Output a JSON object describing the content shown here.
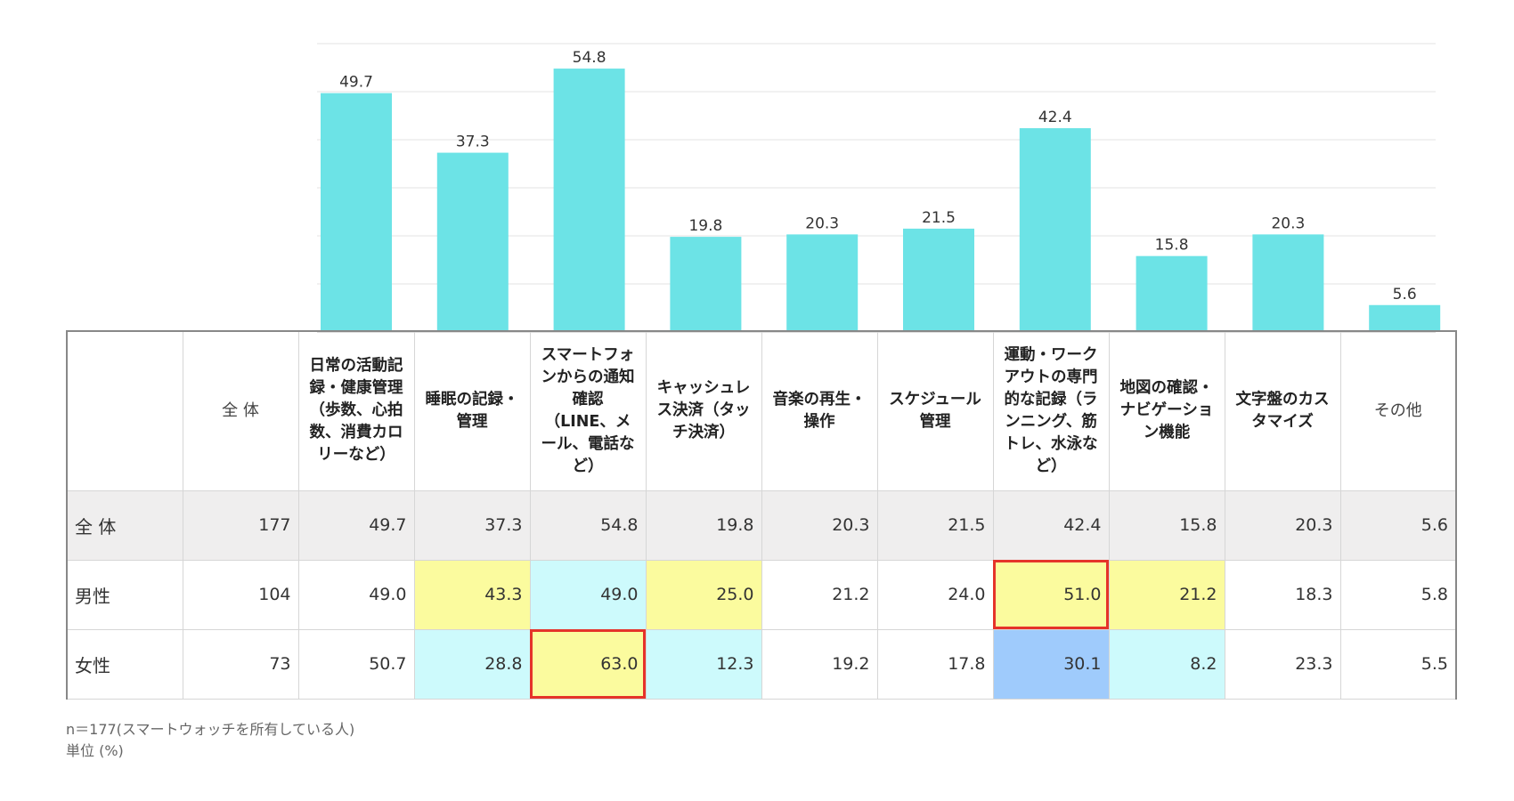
{
  "chart_data": {
    "type": "bar",
    "categories": [
      "日常の活動記録・健康管理（歩数、心拍数、消費カロリーなど）",
      "睡眠の記録・管理",
      "スマートフォンからの通知確認（LINE、メール、電話など）",
      "キャッシュレス決済（タッチ決済）",
      "音楽の再生・操作",
      "スケジュール管理",
      "運動・ワークアウトの専門的な記録（ランニング、筋トレ、水泳など）",
      "地図の確認・ナビゲーション機能",
      "文字盤のカスタマイズ",
      "その他"
    ],
    "values": [
      49.7,
      37.3,
      54.8,
      19.8,
      20.3,
      21.5,
      42.4,
      15.8,
      20.3,
      5.6
    ],
    "value_labels": [
      "49.7",
      "37.3",
      "54.8",
      "19.8",
      "20.3",
      "21.5",
      "42.4",
      "15.8",
      "20.3",
      "5.6"
    ],
    "ylim": [
      0,
      60
    ],
    "grid": true,
    "bar_color": "#6ce3e6"
  },
  "table": {
    "header_labels": [
      "全 体",
      "日常の活動記\n録・健康管理\n（歩数、心拍\n数、消費カロ\nリーなど）",
      "睡眠の記録・\n管理",
      "スマートフォ\nンからの通知\n確認\n（LINE、メ\nール、電話な\nど）",
      "キャッシュレ\nス決済（タッ\nチ決済）",
      "音楽の再生・\n操作",
      "スケジュール\n管理",
      "運動・ワーク\nアウトの専門\n的な記録（ラ\nンニング、筋\nトレ、水泳な\nど）",
      "地図の確認・\nナビゲーショ\nン機能",
      "文字盤のカス\nタマイズ",
      "その他"
    ],
    "rows": [
      {
        "label": "全 体",
        "n": "177",
        "values": [
          "49.7",
          "37.3",
          "54.8",
          "19.8",
          "20.3",
          "21.5",
          "42.4",
          "15.8",
          "20.3",
          "5.6"
        ],
        "styles": [
          "",
          "",
          "",
          "",
          "",
          "",
          "",
          "",
          "",
          ""
        ]
      },
      {
        "label": "男性",
        "n": "104",
        "values": [
          "49.0",
          "43.3",
          "49.0",
          "25.0",
          "21.2",
          "24.0",
          "51.0",
          "21.2",
          "18.3",
          "5.8"
        ],
        "styles": [
          "",
          "yellow",
          "cyan",
          "yellow",
          "",
          "",
          "yellow boxed",
          "yellow",
          "",
          ""
        ]
      },
      {
        "label": "女性",
        "n": "73",
        "values": [
          "50.7",
          "28.8",
          "63.0",
          "12.3",
          "19.2",
          "17.8",
          "30.1",
          "8.2",
          "23.3",
          "5.5"
        ],
        "styles": [
          "",
          "cyan",
          "yellow boxed",
          "cyan",
          "",
          "",
          "blue",
          "cyan",
          "",
          ""
        ]
      }
    ]
  },
  "notes": {
    "sample": "n＝177(スマートウォッチを所有している人)",
    "unit": "単位 (%)"
  }
}
